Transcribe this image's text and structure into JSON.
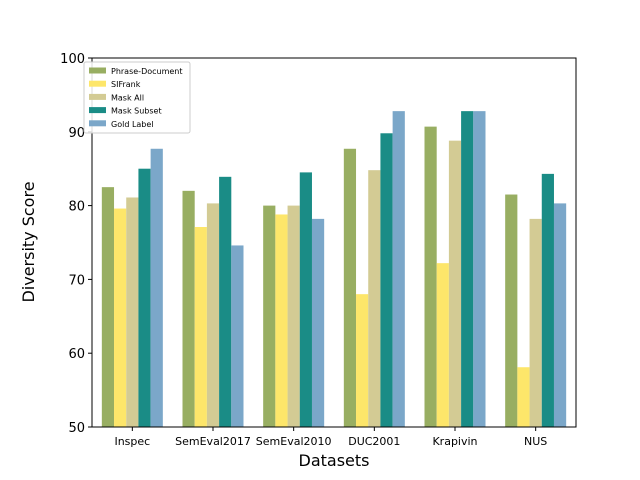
{
  "chart_data": {
    "type": "bar",
    "title": "",
    "xlabel": "Datasets",
    "ylabel": "Diversity Score",
    "ylim": [
      50,
      100
    ],
    "yticks": [
      50,
      60,
      70,
      80,
      90,
      100
    ],
    "grid": false,
    "legend_position": "top-left",
    "categories": [
      "Inspec",
      "SemEval2017",
      "SemEval2010",
      "DUC2001",
      "Krapivin",
      "NUS"
    ],
    "series": [
      {
        "name": "Phrase-Document",
        "color": "#98ae62",
        "values": [
          82.5,
          82.0,
          80.0,
          87.7,
          90.7,
          81.5
        ]
      },
      {
        "name": "SIFrank",
        "color": "#fde66a",
        "values": [
          79.6,
          77.1,
          78.8,
          68.0,
          72.2,
          58.1
        ]
      },
      {
        "name": "Mask All",
        "color": "#d3cb94",
        "values": [
          81.1,
          80.3,
          80.0,
          84.8,
          88.8,
          78.2
        ]
      },
      {
        "name": "Mask Subset",
        "color": "#1a8c86",
        "values": [
          85.0,
          83.9,
          84.5,
          89.8,
          92.8,
          84.3
        ]
      },
      {
        "name": "Gold Label",
        "color": "#7ba7c9",
        "values": [
          87.7,
          74.6,
          78.2,
          92.8,
          92.8,
          80.3
        ]
      }
    ]
  }
}
